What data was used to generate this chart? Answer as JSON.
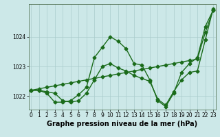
{
  "xlabel": "Graphe pression niveau de la mer (hPa)",
  "bg_color": "#cce8e8",
  "grid_color": "#aacccc",
  "line_color": "#1a6b1a",
  "marker_color": "#1a6b1a",
  "x_ticks": [
    0,
    1,
    2,
    3,
    4,
    5,
    6,
    7,
    8,
    9,
    10,
    11,
    12,
    13,
    14,
    15,
    16,
    17,
    18,
    19,
    20,
    21,
    22,
    23
  ],
  "y_ticks": [
    1022,
    1023,
    1024
  ],
  "ylim": [
    1021.55,
    1025.1
  ],
  "xlim": [
    -0.3,
    23.3
  ],
  "line1_x": [
    0,
    1,
    2,
    3,
    4,
    5,
    6,
    7,
    8,
    9,
    10,
    11,
    12,
    13,
    14,
    15,
    16,
    17,
    18,
    19,
    20,
    21,
    22,
    23
  ],
  "line1_y": [
    1022.2,
    1022.2,
    1022.15,
    1022.1,
    1021.85,
    1021.8,
    1021.85,
    1022.1,
    1022.55,
    1023.0,
    1023.1,
    1022.95,
    1022.85,
    1022.7,
    1022.6,
    1022.5,
    1021.9,
    1021.7,
    1022.15,
    1022.55,
    1022.8,
    1022.85,
    1023.9,
    1024.95
  ],
  "line2_x": [
    0,
    1,
    2,
    3,
    4,
    5,
    6,
    7,
    8,
    9,
    10,
    11,
    12,
    13,
    14,
    15,
    16,
    17,
    18,
    19,
    20,
    21,
    22,
    23
  ],
  "line2_y": [
    1022.2,
    1022.25,
    1022.3,
    1022.35,
    1022.4,
    1022.45,
    1022.5,
    1022.55,
    1022.6,
    1022.65,
    1022.7,
    1022.75,
    1022.8,
    1022.85,
    1022.9,
    1022.95,
    1023.0,
    1023.05,
    1023.1,
    1023.15,
    1023.2,
    1023.25,
    1024.15,
    1024.9
  ],
  "line3_x": [
    0,
    1,
    2,
    3,
    4,
    5,
    6,
    7,
    8,
    9,
    10,
    11,
    12,
    13,
    14,
    15,
    16,
    17,
    18,
    19,
    20,
    21,
    22,
    23
  ],
  "line3_y": [
    1022.2,
    1022.2,
    1022.1,
    1021.8,
    1021.8,
    1021.85,
    1022.05,
    1022.3,
    1023.3,
    1023.65,
    1024.0,
    1023.85,
    1023.6,
    1023.1,
    1023.05,
    1022.55,
    1021.85,
    1021.65,
    1022.1,
    1022.8,
    1023.1,
    1023.3,
    1024.35,
    1024.9
  ],
  "marker": "D",
  "markersize": 2.5,
  "linewidth": 1.0,
  "tick_fontsize": 5.5,
  "xlabel_fontsize": 7.0
}
